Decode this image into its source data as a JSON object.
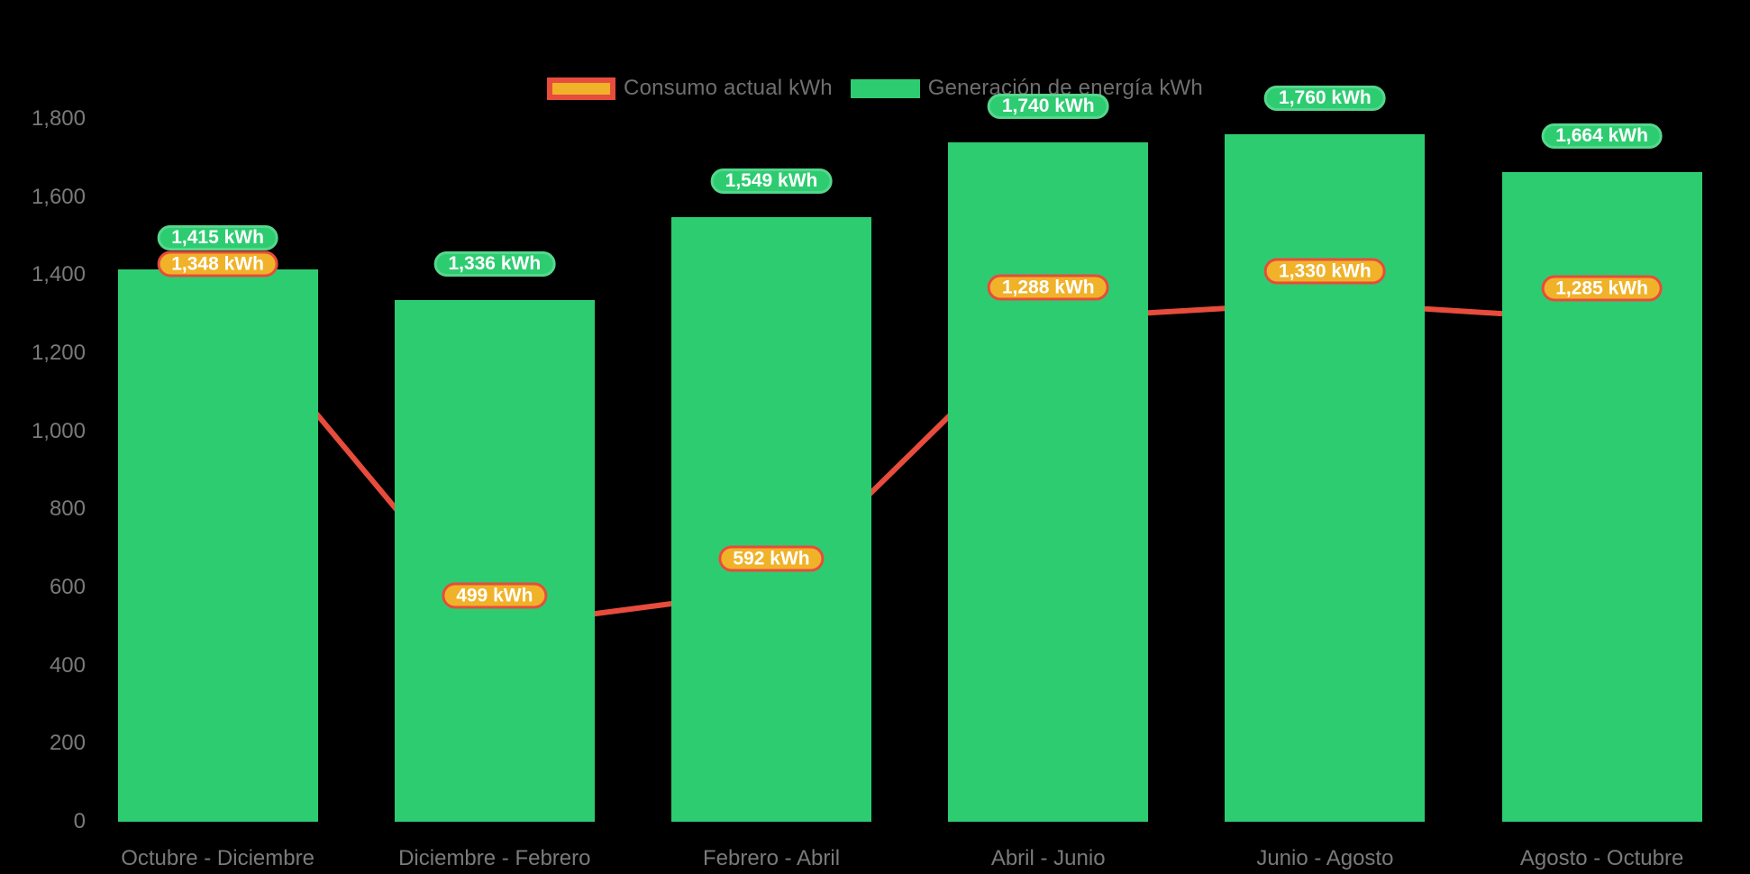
{
  "colors": {
    "background": "#000000",
    "bar_fill": "#2ecc71",
    "bar_badge_border": "#55d78c",
    "line_stroke": "#e74c3c",
    "point_fill": "#f0b229",
    "point_border": "#e74c3c",
    "axis_text": "#7a7a7a",
    "legend_text": "#6f6f6f",
    "badge_text": "#ffffff"
  },
  "chart_data": {
    "type": "bar",
    "subtype": "bar+line combo",
    "categories": [
      "Octubre - Diciembre",
      "Diciembre - Febrero",
      "Febrero - Abril",
      "Abril - Junio",
      "Junio - Agosto",
      "Agosto - Octubre"
    ],
    "series": [
      {
        "name": "Consumo actual kWh",
        "type": "line",
        "color": "#e74c3c",
        "point_color": "#f0b229",
        "values": [
          1348,
          499,
          592,
          1288,
          1330,
          1285
        ],
        "labels": [
          "1,348 kWh",
          "499 kWh",
          "592 kWh",
          "1,288 kWh",
          "1,330 kWh",
          "1,285 kWh"
        ]
      },
      {
        "name": "Generación de energía kWh",
        "type": "bar",
        "color": "#2ecc71",
        "values": [
          1415,
          1336,
          1549,
          1740,
          1760,
          1664
        ],
        "labels": [
          "1,415 kWh",
          "1,336 kWh",
          "1,549 kWh",
          "1,740 kWh",
          "1,760 kWh",
          "1,664 kWh"
        ]
      }
    ],
    "unit": "kWh",
    "title": "",
    "xlabel": "",
    "ylabel": "",
    "ylim": [
      0,
      1800
    ],
    "ytick_step": 200,
    "ytick_labels": [
      "0",
      "200",
      "400",
      "600",
      "800",
      "1,000",
      "1,200",
      "1,400",
      "1,600",
      "1,800"
    ],
    "grid": false,
    "legend_position": "top-center"
  }
}
